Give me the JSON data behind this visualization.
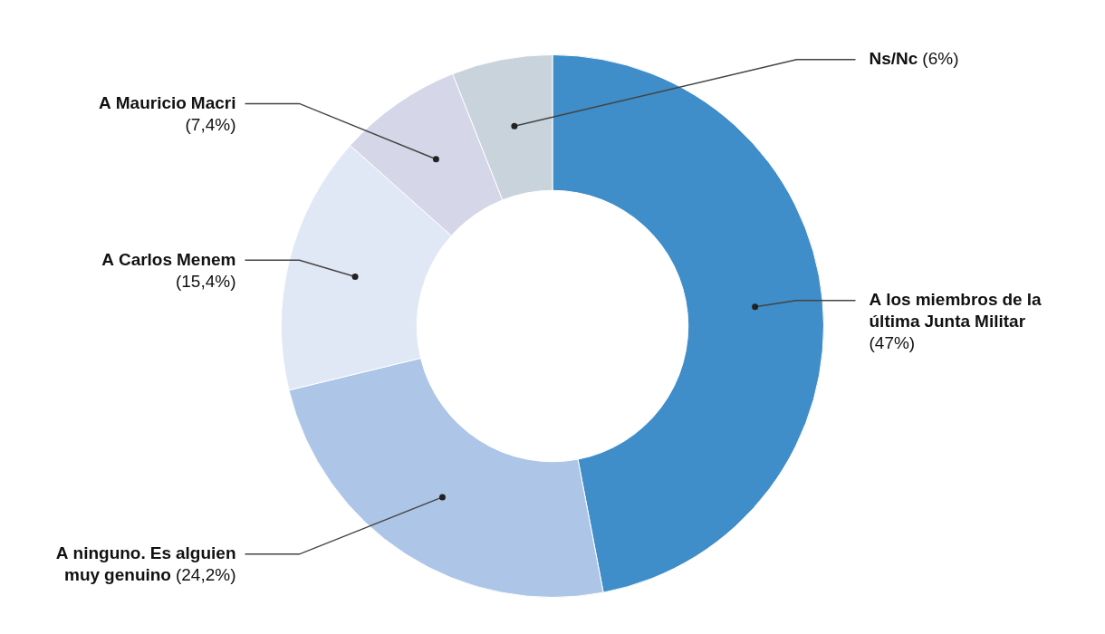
{
  "chart_data": {
    "type": "donut",
    "categories": [
      "A los miembros de la última Junta Militar",
      "A ninguno. Es alguien muy genuino",
      "A Carlos Menem",
      "A Mauricio Macri",
      "Ns/Nc"
    ],
    "values": [
      47,
      24.2,
      15.4,
      7.4,
      6
    ],
    "colors": [
      "#3f8dc9",
      "#adc5e6",
      "#e1e8f5",
      "#d5d7e8",
      "#c8d3dc"
    ],
    "value_labels": [
      "(47%)",
      "(24,2%)",
      "(15,4%)",
      "(7,4%)",
      "(6%)"
    ]
  }
}
